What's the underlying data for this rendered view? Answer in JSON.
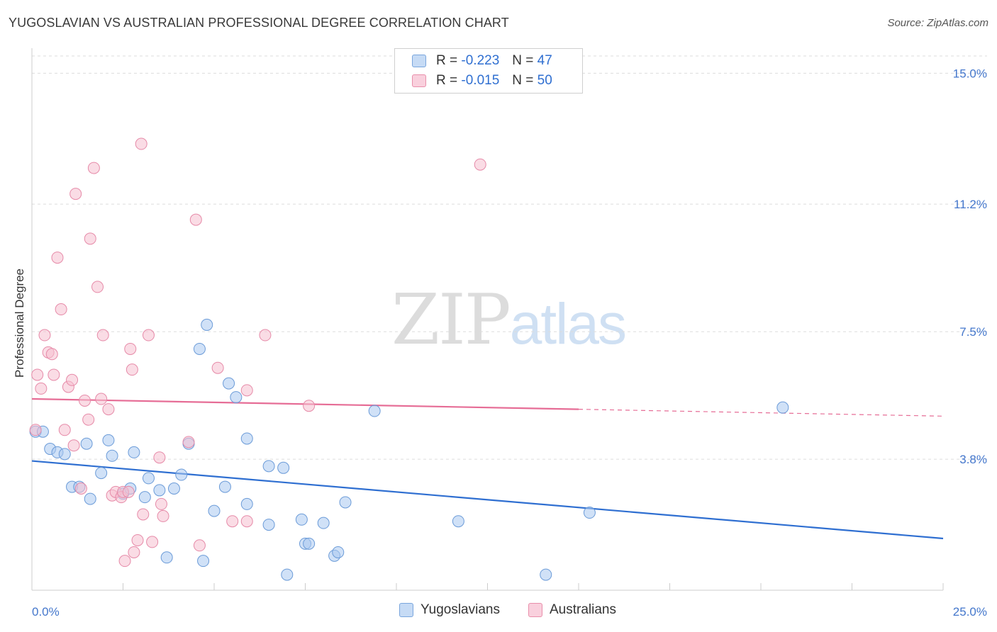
{
  "title": "YUGOSLAVIAN VS AUSTRALIAN PROFESSIONAL DEGREE CORRELATION CHART",
  "source": "Source: ZipAtlas.com",
  "watermark": {
    "zip": "ZIP",
    "atlas": "atlas"
  },
  "legend": {
    "rows": [
      {
        "r_label": "R =",
        "r_value": "-0.223",
        "n_label": "N =",
        "n_value": "47"
      },
      {
        "r_label": "R =",
        "r_value": "-0.015",
        "n_label": "N =",
        "n_value": "50"
      }
    ]
  },
  "bottom_legend": {
    "series1": "Yugoslavians",
    "series2": "Australians"
  },
  "colors": {
    "blue_fill": "#a9c8f0",
    "blue_stroke": "#6b9bd8",
    "blue_line": "#2f6fd1",
    "pink_fill": "#f6bfd0",
    "pink_stroke": "#e68aa8",
    "pink_line": "#e66d96",
    "grid": "#dcdcdc",
    "axis": "#cccccc"
  },
  "chart_data": {
    "type": "scatter",
    "title": "YUGOSLAVIAN VS AUSTRALIAN PROFESSIONAL DEGREE CORRELATION CHART",
    "xlabel": "",
    "ylabel": "Professional Degree",
    "xlim": [
      0,
      25
    ],
    "ylim": [
      0,
      15.5
    ],
    "x_tick_labels": [
      "0.0%",
      "25.0%"
    ],
    "y_ticks": [
      3.8,
      7.5,
      11.2,
      15.0
    ],
    "y_tick_labels": [
      "3.8%",
      "7.5%",
      "11.2%",
      "15.0%"
    ],
    "grid": true,
    "legend_position": "top-center",
    "series": [
      {
        "name": "Yugoslavians",
        "color": "#a9c8f0",
        "trend": {
          "x0": 0,
          "y0": 3.75,
          "x1": 25,
          "y1": 1.5
        },
        "points": [
          [
            0.1,
            4.6
          ],
          [
            0.3,
            4.6
          ],
          [
            0.5,
            4.1
          ],
          [
            0.7,
            4.0
          ],
          [
            0.9,
            3.95
          ],
          [
            1.1,
            3.0
          ],
          [
            1.3,
            3.0
          ],
          [
            1.5,
            4.25
          ],
          [
            1.6,
            2.65
          ],
          [
            1.9,
            3.4
          ],
          [
            2.1,
            4.35
          ],
          [
            2.2,
            3.9
          ],
          [
            2.5,
            2.8
          ],
          [
            2.7,
            2.95
          ],
          [
            2.8,
            4.0
          ],
          [
            3.1,
            2.7
          ],
          [
            3.2,
            3.25
          ],
          [
            3.5,
            2.9
          ],
          [
            3.7,
            0.95
          ],
          [
            3.9,
            2.95
          ],
          [
            4.1,
            3.35
          ],
          [
            4.3,
            4.25
          ],
          [
            4.6,
            7.0
          ],
          [
            4.7,
            0.85
          ],
          [
            4.8,
            7.7
          ],
          [
            5.0,
            2.3
          ],
          [
            5.3,
            3.0
          ],
          [
            5.4,
            6.0
          ],
          [
            5.6,
            5.6
          ],
          [
            5.9,
            2.5
          ],
          [
            5.9,
            4.4
          ],
          [
            6.5,
            3.6
          ],
          [
            6.5,
            1.9
          ],
          [
            6.9,
            3.55
          ],
          [
            7.0,
            0.45
          ],
          [
            7.4,
            2.05
          ],
          [
            7.5,
            1.35
          ],
          [
            7.6,
            1.35
          ],
          [
            8.0,
            1.95
          ],
          [
            8.3,
            1.0
          ],
          [
            8.4,
            1.1
          ],
          [
            8.6,
            2.55
          ],
          [
            9.4,
            5.2
          ],
          [
            11.7,
            2.0
          ],
          [
            14.1,
            0.45
          ],
          [
            15.3,
            2.25
          ],
          [
            20.6,
            5.3
          ]
        ]
      },
      {
        "name": "Australians",
        "color": "#f6bfd0",
        "trend": {
          "x0": 0,
          "y0": 5.55,
          "x1": 15,
          "y1": 5.25,
          "dash_to_x": 25,
          "dash_to_y": 5.05
        },
        "points": [
          [
            0.1,
            4.65
          ],
          [
            0.15,
            6.25
          ],
          [
            0.25,
            5.85
          ],
          [
            0.35,
            7.4
          ],
          [
            0.45,
            6.9
          ],
          [
            0.55,
            6.85
          ],
          [
            0.6,
            6.25
          ],
          [
            0.7,
            9.65
          ],
          [
            0.8,
            8.15
          ],
          [
            0.9,
            4.65
          ],
          [
            1.0,
            5.9
          ],
          [
            1.1,
            6.1
          ],
          [
            1.15,
            4.2
          ],
          [
            1.2,
            11.5
          ],
          [
            1.35,
            2.95
          ],
          [
            1.45,
            5.5
          ],
          [
            1.55,
            4.95
          ],
          [
            1.6,
            10.2
          ],
          [
            1.7,
            12.25
          ],
          [
            1.8,
            8.8
          ],
          [
            1.9,
            5.55
          ],
          [
            1.95,
            7.4
          ],
          [
            2.1,
            5.25
          ],
          [
            2.2,
            2.75
          ],
          [
            2.3,
            2.85
          ],
          [
            2.45,
            2.7
          ],
          [
            2.5,
            2.85
          ],
          [
            2.55,
            0.85
          ],
          [
            2.65,
            2.85
          ],
          [
            2.7,
            7.0
          ],
          [
            2.75,
            6.4
          ],
          [
            2.8,
            1.1
          ],
          [
            2.9,
            1.45
          ],
          [
            3.0,
            12.95
          ],
          [
            3.05,
            2.2
          ],
          [
            3.2,
            7.4
          ],
          [
            3.3,
            1.4
          ],
          [
            3.5,
            3.85
          ],
          [
            3.55,
            2.5
          ],
          [
            3.6,
            2.15
          ],
          [
            4.3,
            4.3
          ],
          [
            4.5,
            10.75
          ],
          [
            4.6,
            1.3
          ],
          [
            5.1,
            6.45
          ],
          [
            5.5,
            2.0
          ],
          [
            5.9,
            5.8
          ],
          [
            5.9,
            2.0
          ],
          [
            6.4,
            7.4
          ],
          [
            7.6,
            5.35
          ],
          [
            12.3,
            12.35
          ]
        ]
      }
    ]
  }
}
